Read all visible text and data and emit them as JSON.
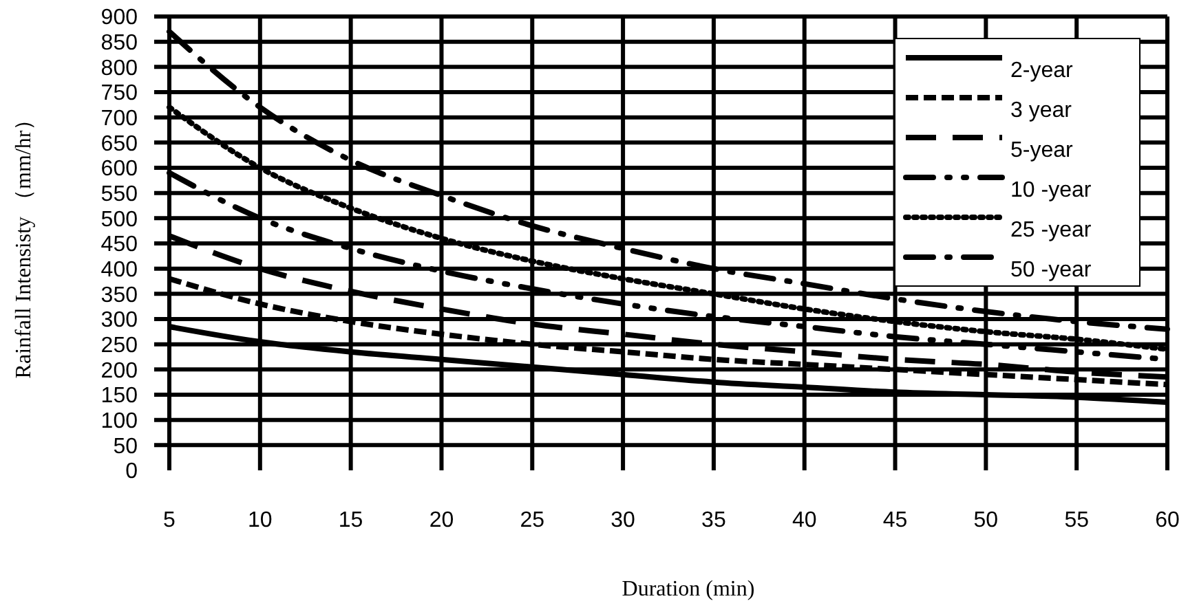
{
  "chart_data": {
    "type": "line",
    "xlabel": "Duration (min)",
    "ylabel": "Rainfall Intensisty （mm/hr）",
    "x": [
      5,
      10,
      15,
      20,
      25,
      30,
      35,
      40,
      45,
      50,
      55,
      60
    ],
    "xlim": [
      5,
      60
    ],
    "xticks": [
      5,
      10,
      15,
      20,
      25,
      30,
      35,
      40,
      45,
      50,
      55,
      60
    ],
    "ylim": [
      0,
      900
    ],
    "yticks": [
      0,
      50,
      100,
      150,
      200,
      250,
      300,
      350,
      400,
      450,
      500,
      550,
      600,
      650,
      700,
      750,
      800,
      850,
      900
    ],
    "grid": true,
    "legend": "top right",
    "marker": "none",
    "series": [
      {
        "name": "2-year",
        "color": "#000000",
        "line_style": "solid",
        "values": [
          285,
          255,
          235,
          220,
          205,
          190,
          175,
          165,
          155,
          150,
          145,
          135
        ]
      },
      {
        "name": "3  year",
        "color": "#000000",
        "line_style": "dashed",
        "values": [
          380,
          330,
          295,
          270,
          250,
          235,
          220,
          210,
          200,
          190,
          180,
          170
        ]
      },
      {
        "name": "5-year",
        "color": "#000000",
        "line_style": "longdash",
        "values": [
          465,
          400,
          355,
          320,
          290,
          270,
          250,
          235,
          220,
          210,
          195,
          185
        ]
      },
      {
        "name": "10 -year",
        "color": "#000000",
        "line_style": "longdashdotdot",
        "values": [
          590,
          500,
          440,
          395,
          360,
          330,
          305,
          285,
          265,
          250,
          235,
          220
        ]
      },
      {
        "name": "25 -year",
        "color": "#000000",
        "line_style": "dotted",
        "values": [
          720,
          600,
          520,
          460,
          415,
          380,
          350,
          320,
          295,
          275,
          260,
          240
        ]
      },
      {
        "name": "50 -year",
        "color": "#000000",
        "line_style": "longdashdot",
        "values": [
          870,
          720,
          615,
          545,
          485,
          440,
          400,
          370,
          340,
          315,
          295,
          280
        ]
      }
    ]
  }
}
